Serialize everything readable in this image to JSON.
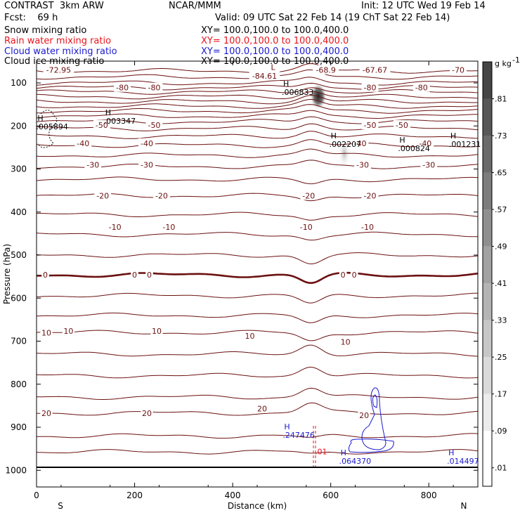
{
  "header": {
    "left_title": "CONTRAST  3km ARW",
    "center_title": "NCAR/MMM",
    "init": "Init: 12 UTC Wed 19 Feb 14",
    "fcst": "Fcst:    69 h",
    "valid": "Valid: 09 UTC Sat 22 Feb 14 (19 ChT Sat 22 Feb 14)"
  },
  "fields": [
    {
      "name": "Snow mixing ratio",
      "xy": "XY= 100.0,100.0 to 100.0,400.0",
      "color": "#000000"
    },
    {
      "name": "Rain water mixing ratio",
      "xy": "XY= 100.0,100.0 to 100.0,400.0",
      "color": "#e8141c"
    },
    {
      "name": "Cloud water mixing ratio",
      "xy": "XY= 100.0,100.0 to 100.0,400.0",
      "color": "#1a1ad0"
    },
    {
      "name": "Cloud ice mixing ratio",
      "xy": "XY= 100.0,100.0 to 100.0,400.0",
      "color": "#000000"
    }
  ],
  "colors": {
    "temp_contour": "#6b1010",
    "cloud_water": "#1a1ad0",
    "rain": "#e8141c"
  },
  "chart_data": {
    "type": "cross-section",
    "xlabel": "Distance (km)",
    "ylabel": "Pressure (hPa)",
    "xlim": [
      0,
      900
    ],
    "ylim": [
      1050,
      50
    ],
    "x_ticks": [
      "0",
      "200",
      "400",
      "600",
      "800"
    ],
    "y_ticks": [
      "100",
      "200",
      "300",
      "400",
      "500",
      "600",
      "700",
      "800",
      "900",
      "1000"
    ],
    "endpoints": {
      "left": "S",
      "right": "N"
    },
    "colorbar": {
      "unit": "g kg",
      "unit_exp": "-1",
      "ticks": [
        ".01",
        ".09",
        ".17",
        ".25",
        ".33",
        ".41",
        ".49",
        ".57",
        ".65",
        ".73",
        ".81"
      ]
    },
    "temperature_labels": [
      {
        "t": "-72.95",
        "x": 45,
        "p": 70
      },
      {
        "t": "-84.61",
        "x": 465,
        "p": 84
      },
      {
        "t": "-68.9",
        "x": 590,
        "p": 70
      },
      {
        "t": "-67.67",
        "x": 690,
        "p": 70
      },
      {
        "t": "-70",
        "x": 860,
        "p": 70
      },
      {
        "t": "-80",
        "x": 175,
        "p": 111
      },
      {
        "t": "-80",
        "x": 240,
        "p": 111
      },
      {
        "t": "-80",
        "x": 680,
        "p": 111
      },
      {
        "t": "-80",
        "x": 785,
        "p": 111
      },
      {
        "t": "-50",
        "x": 133,
        "p": 198
      },
      {
        "t": "-50",
        "x": 240,
        "p": 198
      },
      {
        "t": "-50",
        "x": 680,
        "p": 198
      },
      {
        "t": "-50",
        "x": 745,
        "p": 198
      },
      {
        "t": "-40",
        "x": 95,
        "p": 240
      },
      {
        "t": "-40",
        "x": 225,
        "p": 240
      },
      {
        "t": "-40",
        "x": 660,
        "p": 240
      },
      {
        "t": "-40",
        "x": 793,
        "p": 240
      },
      {
        "t": "-30",
        "x": 115,
        "p": 290
      },
      {
        "t": "-30",
        "x": 225,
        "p": 290
      },
      {
        "t": "-30",
        "x": 665,
        "p": 290
      },
      {
        "t": "-30",
        "x": 800,
        "p": 290
      },
      {
        "t": "-20",
        "x": 135,
        "p": 362
      },
      {
        "t": "-20",
        "x": 255,
        "p": 362
      },
      {
        "t": "-20",
        "x": 555,
        "p": 362
      },
      {
        "t": "-20",
        "x": 680,
        "p": 362
      },
      {
        "t": "-10",
        "x": 160,
        "p": 435
      },
      {
        "t": "-10",
        "x": 270,
        "p": 435
      },
      {
        "t": "-10",
        "x": 550,
        "p": 435
      },
      {
        "t": "-10",
        "x": 675,
        "p": 435
      },
      {
        "t": "0",
        "x": 18,
        "p": 546
      },
      {
        "t": "0",
        "x": 200,
        "p": 546
      },
      {
        "t": "0",
        "x": 230,
        "p": 546
      },
      {
        "t": "0",
        "x": 625,
        "p": 546
      },
      {
        "t": "0",
        "x": 648,
        "p": 546
      },
      {
        "t": "10",
        "x": 20,
        "p": 680
      },
      {
        "t": "10",
        "x": 65,
        "p": 676
      },
      {
        "t": "10",
        "x": 245,
        "p": 676
      },
      {
        "t": "10",
        "x": 435,
        "p": 688
      },
      {
        "t": "10",
        "x": 630,
        "p": 702
      },
      {
        "t": "20",
        "x": 20,
        "p": 867
      },
      {
        "t": "20",
        "x": 225,
        "p": 867
      },
      {
        "t": "20",
        "x": 460,
        "p": 857
      },
      {
        "t": "20",
        "x": 668,
        "p": 872
      }
    ],
    "extrema": [
      {
        "kind": "L",
        "x": 478,
        "p": 70,
        "value": "",
        "color": "#6b1010"
      },
      {
        "kind": "H",
        "x": 2,
        "p": 188,
        "value": ".005894",
        "color": "#000000"
      },
      {
        "kind": "H",
        "x": 140,
        "p": 175,
        "value": ".003347",
        "color": "#000000"
      },
      {
        "kind": "H",
        "x": 503,
        "p": 108,
        "value": ".006833",
        "color": "#000000"
      },
      {
        "kind": "H",
        "x": 600,
        "p": 229,
        "value": ".002207",
        "color": "#000000"
      },
      {
        "kind": "H",
        "x": 740,
        "p": 239,
        "value": ".000824",
        "color": "#000000"
      },
      {
        "kind": "H",
        "x": 844,
        "p": 229,
        "value": ".001231",
        "color": "#000000"
      },
      {
        "kind": "H",
        "x": 505,
        "p": 905,
        "value": ".247476",
        "color": "#1a1ad0"
      },
      {
        "kind": "H",
        "x": 620,
        "p": 965,
        "value": ".064370",
        "color": "#1a1ad0"
      },
      {
        "kind": "H",
        "x": 840,
        "p": 965,
        "value": ".014497",
        "color": "#1a1ad0"
      }
    ],
    "rain_label": {
      "text": ".01",
      "x": 580,
      "p": 956
    }
  }
}
